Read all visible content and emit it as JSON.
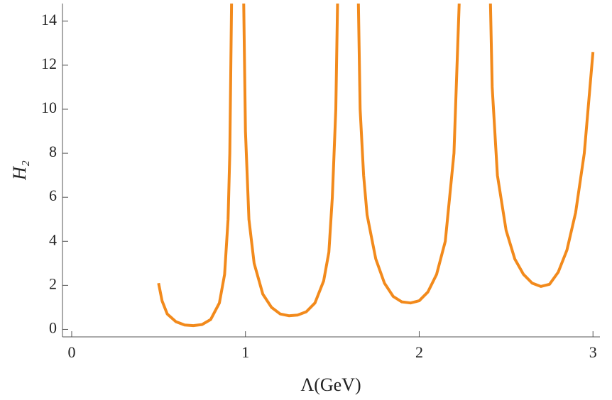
{
  "chart_data": {
    "type": "line",
    "x_label": "Λ(GeV)",
    "y_label": "H₂",
    "x": [
      0.5,
      0.52,
      0.55,
      0.6,
      0.65,
      0.7,
      0.75,
      0.8,
      0.85,
      0.88,
      0.9,
      0.91,
      0.92,
      0.955,
      0.99,
      1.0,
      1.02,
      1.05,
      1.1,
      1.15,
      1.2,
      1.25,
      1.3,
      1.35,
      1.4,
      1.45,
      1.48,
      1.5,
      1.52,
      1.53,
      1.59,
      1.65,
      1.66,
      1.68,
      1.7,
      1.75,
      1.8,
      1.85,
      1.9,
      1.95,
      2.0,
      2.05,
      2.1,
      2.15,
      2.2,
      2.23,
      2.32,
      2.41,
      2.42,
      2.45,
      2.5,
      2.55,
      2.6,
      2.65,
      2.7,
      2.75,
      2.8,
      2.85,
      2.9,
      2.95,
      3.0
    ],
    "values": [
      2.1,
      1.3,
      0.7,
      0.35,
      0.2,
      0.17,
      0.22,
      0.45,
      1.2,
      2.5,
      5,
      8,
      14.8,
      null,
      14.8,
      9,
      5,
      3,
      1.6,
      1.0,
      0.7,
      0.62,
      0.65,
      0.8,
      1.2,
      2.2,
      3.5,
      6,
      10,
      14.8,
      null,
      14.8,
      10,
      7,
      5.2,
      3.2,
      2.1,
      1.5,
      1.25,
      1.2,
      1.3,
      1.7,
      2.5,
      4,
      8,
      14.8,
      null,
      14.8,
      11,
      7,
      4.5,
      3.2,
      2.5,
      2.1,
      1.95,
      2.05,
      2.6,
      3.6,
      5.3,
      8,
      12.6
    ],
    "color": "#f28a1c",
    "xlim": [
      -0.053,
      3.04
    ],
    "ylim": [
      -0.34,
      14.8
    ],
    "xticks": [
      0,
      1,
      2,
      3
    ],
    "yticks": [
      0,
      2,
      4,
      6,
      8,
      10,
      12,
      14
    ]
  }
}
